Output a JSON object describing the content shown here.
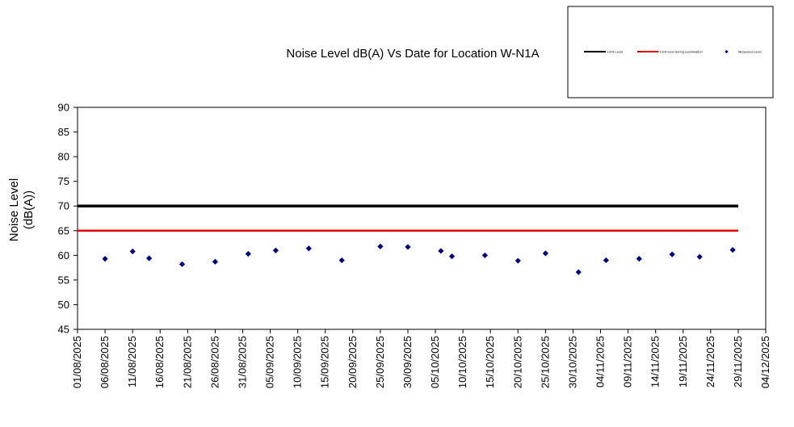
{
  "chart_data": {
    "type": "scatter",
    "title": "Noise Level dB(A) Vs Date for Location W-N1A",
    "ylabel_line1": "Noise Level",
    "ylabel_line2": "(dB(A))",
    "ylim": [
      45,
      90
    ],
    "yticks": [
      "45",
      "50",
      "55",
      "60",
      "65",
      "70",
      "75",
      "80",
      "85",
      "90"
    ],
    "xlim": [
      "2025-08-01",
      "2025-12-04"
    ],
    "xtick_labels": [
      "01/08/2025",
      "06/08/2025",
      "11/08/2025",
      "16/08/2025",
      "21/08/2025",
      "26/08/2025",
      "31/08/2025",
      "05/09/2025",
      "10/09/2025",
      "15/09/2025",
      "20/09/2025",
      "25/09/2025",
      "30/09/2025",
      "05/10/2025",
      "10/10/2025",
      "15/10/2025",
      "20/10/2025",
      "25/10/2025",
      "30/10/2025",
      "04/11/2025",
      "09/11/2025",
      "14/11/2025",
      "19/11/2025",
      "24/11/2025",
      "29/11/2025",
      "04/12/2025"
    ],
    "legend": {
      "position": "top-right"
    },
    "series": [
      {
        "name": "Limit Level",
        "kind": "line",
        "color": "#000000",
        "value": 70,
        "x_range": [
          "2025-08-01",
          "2025-11-29"
        ]
      },
      {
        "name": "Limit level during examination",
        "kind": "line",
        "color": "#e00000",
        "value": 65,
        "x_range": [
          "2025-08-01",
          "2025-11-29"
        ]
      },
      {
        "name": "Measured Level",
        "kind": "scatter",
        "color": "#000080",
        "points": [
          {
            "x": "2025-08-06",
            "y": 59.3
          },
          {
            "x": "2025-08-11",
            "y": 60.8
          },
          {
            "x": "2025-08-14",
            "y": 59.4
          },
          {
            "x": "2025-08-20",
            "y": 58.2
          },
          {
            "x": "2025-08-26",
            "y": 58.7
          },
          {
            "x": "2025-09-01",
            "y": 60.3
          },
          {
            "x": "2025-09-06",
            "y": 61.0
          },
          {
            "x": "2025-09-12",
            "y": 61.4
          },
          {
            "x": "2025-09-18",
            "y": 59.0
          },
          {
            "x": "2025-09-25",
            "y": 61.8
          },
          {
            "x": "2025-09-30",
            "y": 61.7
          },
          {
            "x": "2025-10-06",
            "y": 60.9
          },
          {
            "x": "2025-10-08",
            "y": 59.8
          },
          {
            "x": "2025-10-14",
            "y": 60.0
          },
          {
            "x": "2025-10-20",
            "y": 58.9
          },
          {
            "x": "2025-10-25",
            "y": 60.4
          },
          {
            "x": "2025-10-31",
            "y": 56.6
          },
          {
            "x": "2025-11-05",
            "y": 59.0
          },
          {
            "x": "2025-11-11",
            "y": 59.3
          },
          {
            "x": "2025-11-17",
            "y": 60.2
          },
          {
            "x": "2025-11-22",
            "y": 59.7
          },
          {
            "x": "2025-11-28",
            "y": 61.1
          }
        ]
      }
    ]
  }
}
